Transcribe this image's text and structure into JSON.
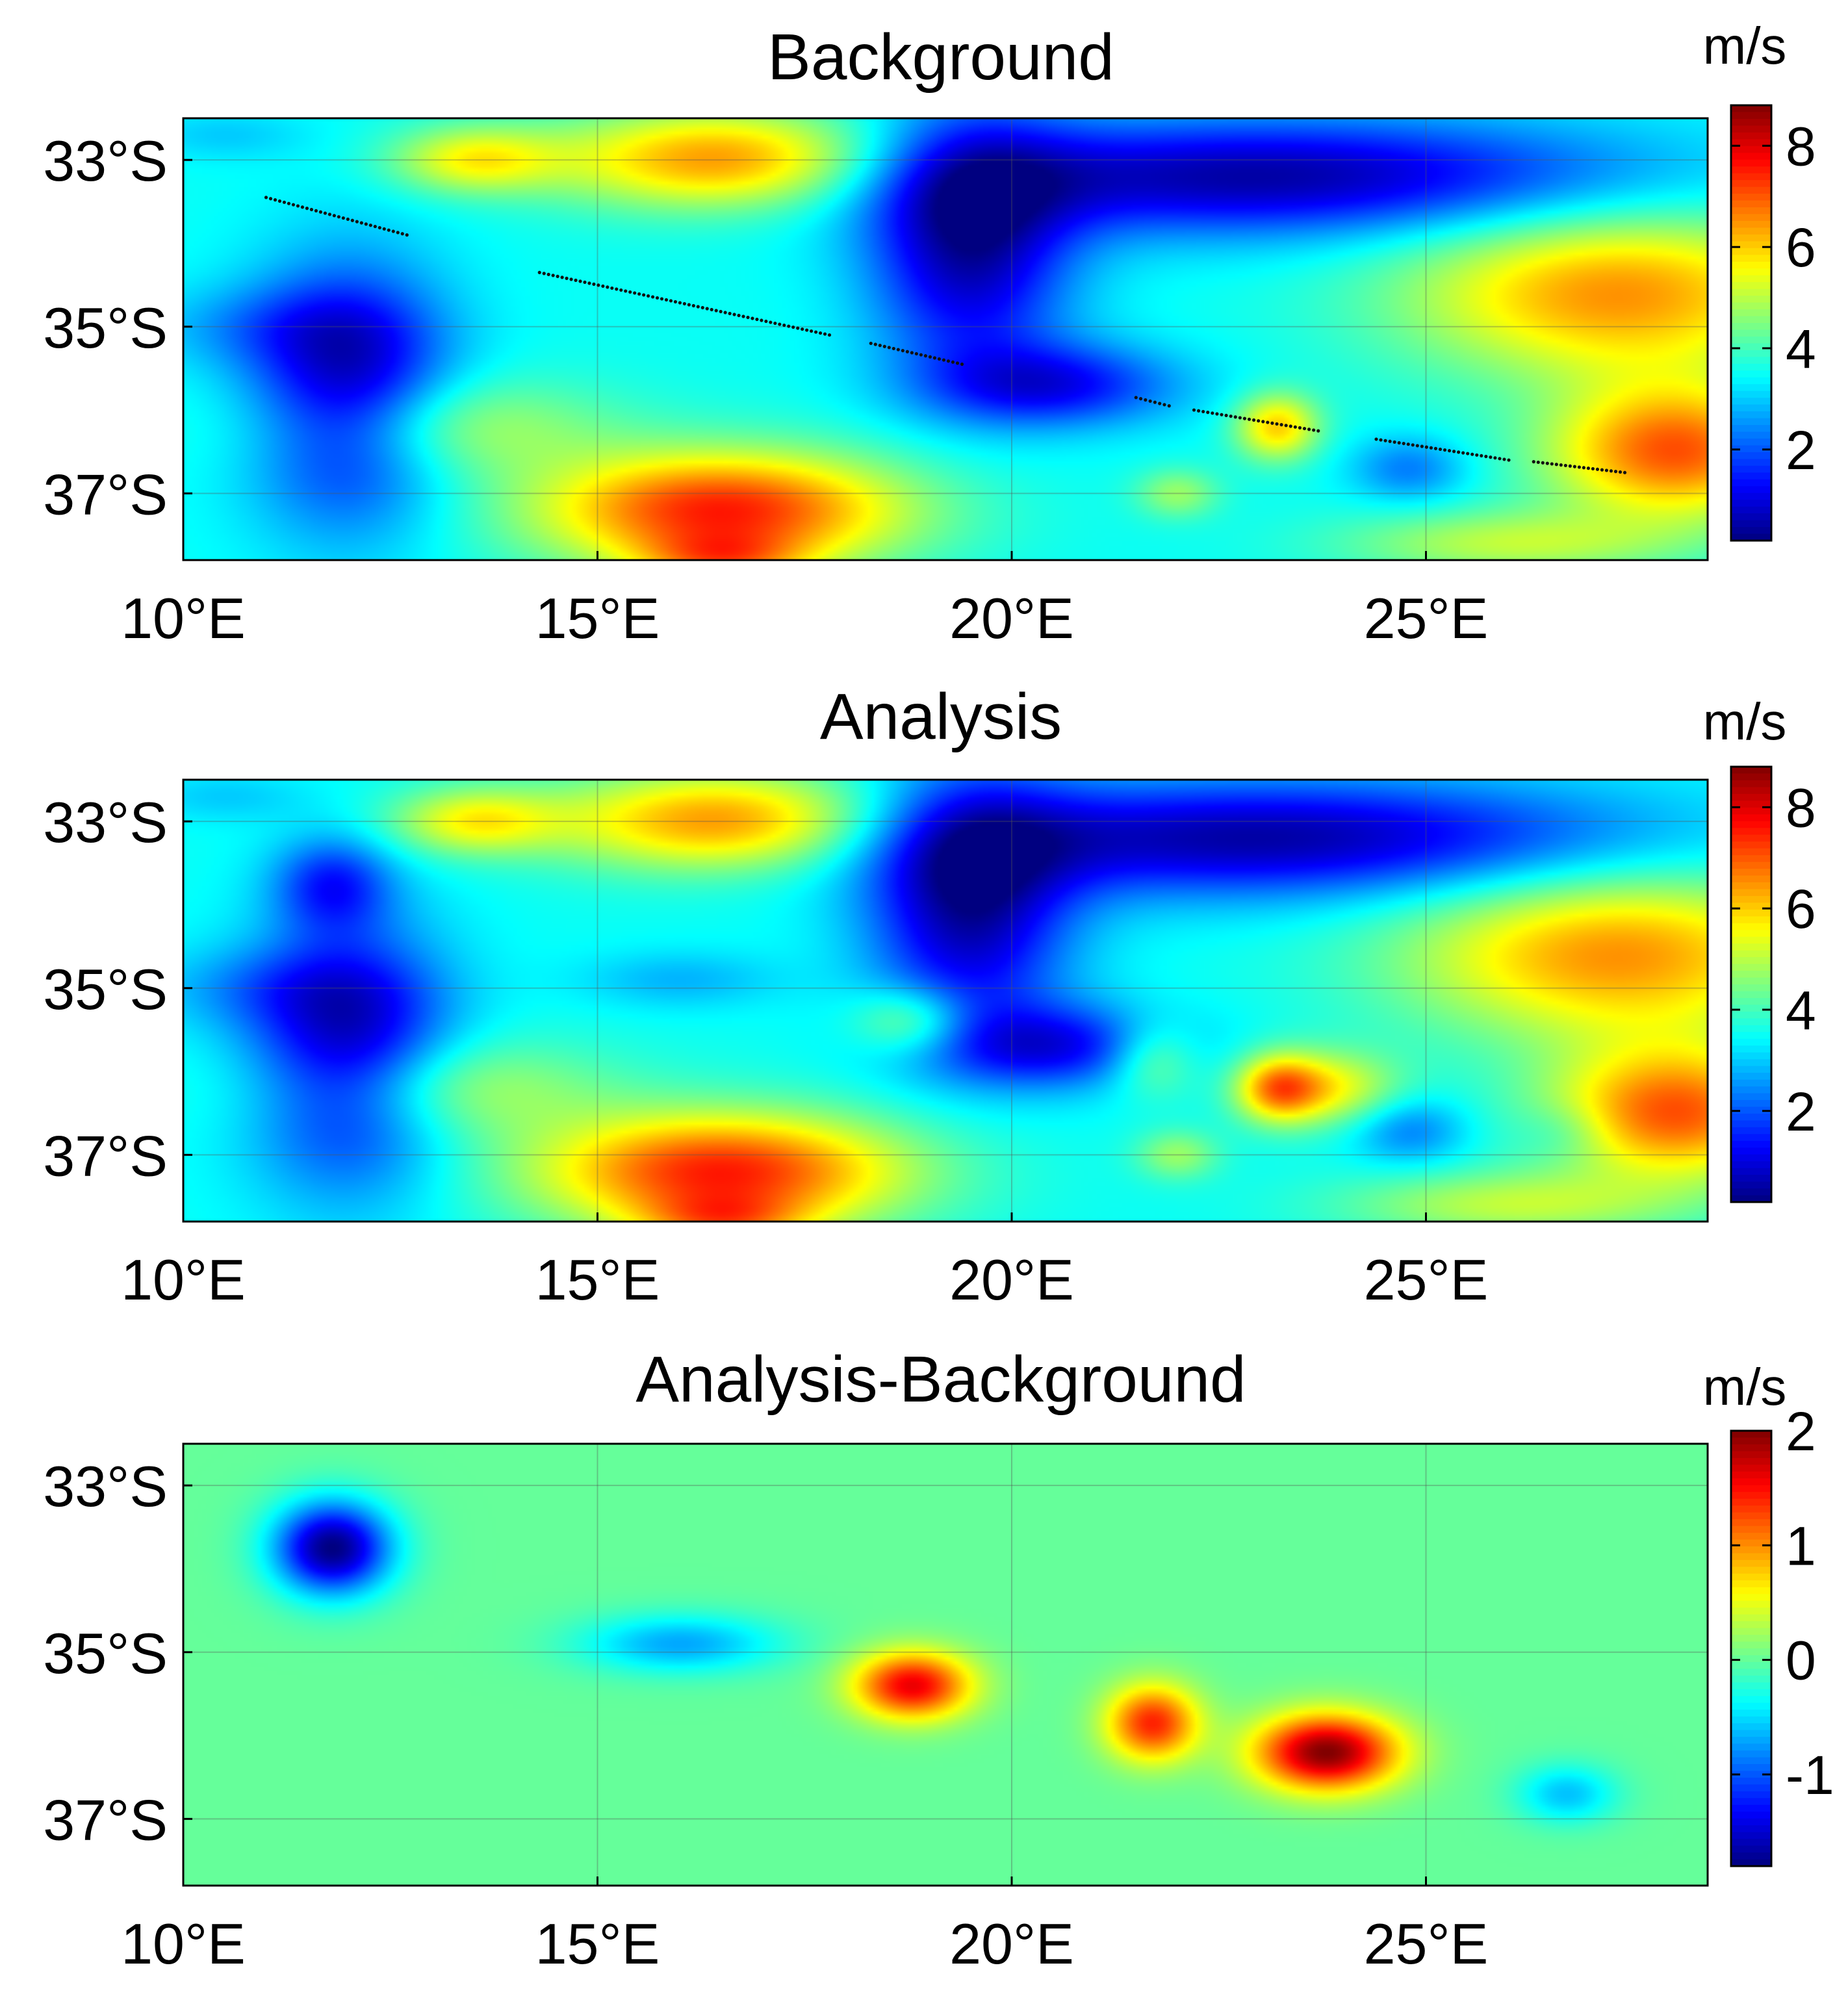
{
  "chart_data": [
    {
      "type": "heatmap",
      "title": "Background",
      "colorbar": {
        "unit": "m/s",
        "range": [
          0.2,
          8.8
        ],
        "ticks": [
          2,
          4,
          6,
          8
        ],
        "colormap": "jet"
      },
      "x_axis": {
        "range": [
          10,
          28.4
        ],
        "ticks": [
          10,
          15,
          20,
          25
        ],
        "tick_labels": [
          "10°E",
          "15°E",
          "20°E",
          "25°E"
        ]
      },
      "y_axis": {
        "range": [
          -37.8,
          -32.5
        ],
        "ticks": [
          -33,
          -35,
          -37
        ],
        "tick_labels": [
          "33°S",
          "35°S",
          "37°S"
        ]
      },
      "grid": true,
      "field": {
        "base": 3.5,
        "blobs": [
          {
            "lon": 16.5,
            "lat": -33.0,
            "rx": 2.0,
            "ry": 0.6,
            "amp": 3.2
          },
          {
            "lon": 13.5,
            "lat": -33.0,
            "rx": 1.0,
            "ry": 0.4,
            "amp": 2.0
          },
          {
            "lon": 16.5,
            "lat": -37.2,
            "rx": 2.2,
            "ry": 0.7,
            "amp": 4.0
          },
          {
            "lon": 16.5,
            "lat": -37.8,
            "rx": 1.0,
            "ry": 0.3,
            "amp": 1.8
          },
          {
            "lon": 13.0,
            "lat": -36.2,
            "rx": 2.0,
            "ry": 0.6,
            "amp": 1.5
          },
          {
            "lon": 27.3,
            "lat": -34.6,
            "rx": 2.5,
            "ry": 1.0,
            "amp": 3.0
          },
          {
            "lon": 28.0,
            "lat": -36.5,
            "rx": 1.5,
            "ry": 0.8,
            "amp": 3.5
          },
          {
            "lon": 26.0,
            "lat": -37.6,
            "rx": 2.0,
            "ry": 0.4,
            "amp": 1.5
          },
          {
            "lon": 12.0,
            "lat": -35.8,
            "rx": 1.2,
            "ry": 1.5,
            "amp": -3.0
          },
          {
            "lon": 11.0,
            "lat": -35.0,
            "rx": 1.5,
            "ry": 0.5,
            "amp": -0.8
          },
          {
            "lon": 19.5,
            "lat": -34.0,
            "rx": 1.2,
            "ry": 1.5,
            "amp": -3.0
          },
          {
            "lon": 23.0,
            "lat": -33.2,
            "rx": 4.5,
            "ry": 0.7,
            "amp": -3.0
          },
          {
            "lon": 20.5,
            "lat": -35.7,
            "rx": 1.5,
            "ry": 0.5,
            "amp": -2.2
          },
          {
            "lon": 23.2,
            "lat": -36.2,
            "rx": 0.5,
            "ry": 0.4,
            "amp": 2.5
          },
          {
            "lon": 22.0,
            "lat": -37.0,
            "rx": 0.5,
            "ry": 0.3,
            "amp": 1.2
          },
          {
            "lon": 24.8,
            "lat": -36.7,
            "rx": 0.7,
            "ry": 0.4,
            "amp": -1.2
          },
          {
            "lon": 10.5,
            "lat": -32.7,
            "rx": 1.0,
            "ry": 0.3,
            "amp": -0.5
          }
        ]
      },
      "track": [
        {
          "from": [
            11.0,
            -33.45
          ],
          "to": [
            12.7,
            -33.9
          ]
        },
        {
          "from": [
            14.3,
            -34.35
          ],
          "to": [
            17.8,
            -35.1
          ]
        },
        {
          "from": [
            18.3,
            -35.2
          ],
          "to": [
            19.4,
            -35.45
          ]
        },
        {
          "from": [
            21.5,
            -35.85
          ],
          "to": [
            21.9,
            -35.95
          ]
        },
        {
          "from": [
            22.2,
            -36.0
          ],
          "to": [
            23.7,
            -36.25
          ]
        },
        {
          "from": [
            24.4,
            -36.35
          ],
          "to": [
            26.0,
            -36.6
          ]
        },
        {
          "from": [
            26.3,
            -36.62
          ],
          "to": [
            27.4,
            -36.75
          ]
        }
      ]
    },
    {
      "type": "heatmap",
      "title": "Analysis",
      "colorbar": {
        "unit": "m/s",
        "range": [
          0.2,
          8.8
        ],
        "ticks": [
          2,
          4,
          6,
          8
        ],
        "colormap": "jet"
      },
      "x_axis": {
        "range": [
          10,
          28.4
        ],
        "ticks": [
          10,
          15,
          20,
          25
        ],
        "tick_labels": [
          "10°E",
          "15°E",
          "20°E",
          "25°E"
        ]
      },
      "y_axis": {
        "range": [
          -37.8,
          -32.5
        ],
        "ticks": [
          -33,
          -35,
          -37
        ],
        "tick_labels": [
          "33°S",
          "35°S",
          "37°S"
        ]
      },
      "grid": true,
      "field": {
        "note_free": true,
        "equals": "background + difference"
      }
    },
    {
      "type": "heatmap",
      "title": "Analysis-Background",
      "colorbar": {
        "unit": "m/s",
        "range": [
          -1.8,
          2.0
        ],
        "ticks": [
          -1,
          0,
          1,
          2
        ],
        "colormap": "jet"
      },
      "x_axis": {
        "range": [
          10,
          28.4
        ],
        "ticks": [
          10,
          15,
          20,
          25
        ],
        "tick_labels": [
          "10°E",
          "15°E",
          "20°E",
          "25°E"
        ]
      },
      "y_axis": {
        "range": [
          -37.8,
          -32.5
        ],
        "ticks": [
          -33,
          -35,
          -37
        ],
        "tick_labels": [
          "33°S",
          "35°S",
          "37°S"
        ]
      },
      "grid": true,
      "field": {
        "base": 0.0,
        "blobs": [
          {
            "lon": 11.8,
            "lat": -33.75,
            "rx": 0.7,
            "ry": 0.55,
            "amp": -1.8
          },
          {
            "lon": 16.0,
            "lat": -34.9,
            "rx": 1.2,
            "ry": 0.35,
            "amp": -0.7
          },
          {
            "lon": 18.8,
            "lat": -35.4,
            "rx": 0.7,
            "ry": 0.4,
            "amp": 1.6
          },
          {
            "lon": 21.7,
            "lat": -35.85,
            "rx": 0.55,
            "ry": 0.45,
            "amp": 1.4
          },
          {
            "lon": 23.8,
            "lat": -36.2,
            "rx": 0.85,
            "ry": 0.45,
            "amp": 2.0
          },
          {
            "lon": 26.7,
            "lat": -36.7,
            "rx": 0.6,
            "ry": 0.35,
            "amp": -0.6
          }
        ]
      }
    }
  ]
}
